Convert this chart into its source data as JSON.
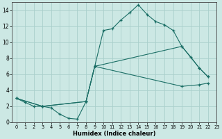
{
  "xlabel": "Humidex (Indice chaleur)",
  "bg_color": "#cce8e4",
  "line_color": "#1a6e65",
  "grid_color": "#aacfcb",
  "line1_x": [
    0,
    1,
    2,
    3,
    4,
    5,
    6,
    7,
    8,
    9,
    10,
    11,
    12,
    13,
    14,
    15,
    16,
    17,
    18,
    19,
    20,
    21,
    22
  ],
  "line1_y": [
    3,
    2.5,
    2,
    2,
    1.8,
    1,
    0.5,
    0.4,
    2.6,
    7,
    11.5,
    11.7,
    12.8,
    13.7,
    14.7,
    13.5,
    12.6,
    12.2,
    11.5,
    9.5,
    8.2,
    6.8,
    5.7
  ],
  "line2_x": [
    0,
    3,
    8,
    9,
    19,
    21,
    22
  ],
  "line2_y": [
    3,
    2,
    2.6,
    7,
    9.5,
    6.8,
    5.7
  ],
  "line3_x": [
    0,
    3,
    8,
    9,
    19,
    21,
    22
  ],
  "line3_y": [
    3,
    2,
    2.6,
    7,
    4.5,
    4.7,
    4.9
  ],
  "xlim": [
    -0.5,
    23
  ],
  "ylim": [
    0,
    15
  ],
  "xticks": [
    0,
    1,
    2,
    3,
    4,
    5,
    6,
    7,
    8,
    9,
    10,
    11,
    12,
    13,
    14,
    15,
    16,
    17,
    18,
    19,
    20,
    21,
    22,
    23
  ],
  "yticks": [
    0,
    2,
    4,
    6,
    8,
    10,
    12,
    14
  ]
}
